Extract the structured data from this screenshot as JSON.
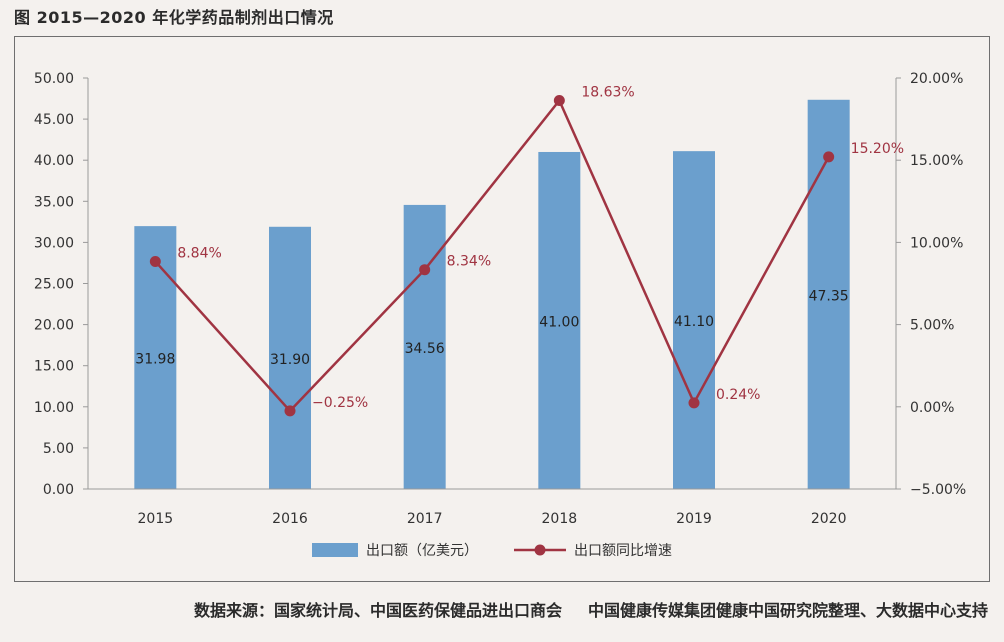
{
  "figure": {
    "title": "图    2015—2020 年化学药品制剂出口情况",
    "source_prefix": "数据来源：",
    "source_1": "国家统计局、中国医药保健品进出口商会",
    "source_2": "中国健康传媒集团健康中国研究院整理、大数据中心支持"
  },
  "chart_data": {
    "type": "bar",
    "title": "2015—2020 年化学药品制剂出口情况",
    "categories": [
      "2015",
      "2016",
      "2017",
      "2018",
      "2019",
      "2020"
    ],
    "y_left": {
      "min": 0,
      "max": 50,
      "step": 5,
      "tick_labels": [
        "0.00",
        "5.00",
        "10.00",
        "15.00",
        "20.00",
        "25.00",
        "30.00",
        "35.00",
        "40.00",
        "45.00",
        "50.00"
      ]
    },
    "y_right": {
      "min": -5,
      "max": 20,
      "step": 5,
      "tick_labels": [
        "−5.00%",
        "0.00%",
        "5.00%",
        "10.00%",
        "15.00%",
        "20.00%"
      ]
    },
    "series": [
      {
        "name": "出口额（亿美元）",
        "type": "bar",
        "axis": "left",
        "color": "#6b9fcd",
        "values": [
          31.98,
          31.9,
          34.56,
          41.0,
          41.1,
          47.35
        ],
        "labels": [
          "31.98",
          "31.90",
          "34.56",
          "41.00",
          "41.10",
          "47.35"
        ],
        "label_color": "#222222"
      },
      {
        "name": "出口额同比增速",
        "type": "line",
        "axis": "right",
        "color": "#a03442",
        "values": [
          8.84,
          -0.25,
          8.34,
          18.63,
          0.24,
          15.2
        ],
        "labels": [
          "8.84%",
          "−0.25%",
          "8.34%",
          "18.63%",
          "0.24%",
          "15.20%"
        ],
        "label_color": "#a03442"
      }
    ],
    "legend": "bottom",
    "grid": false
  }
}
